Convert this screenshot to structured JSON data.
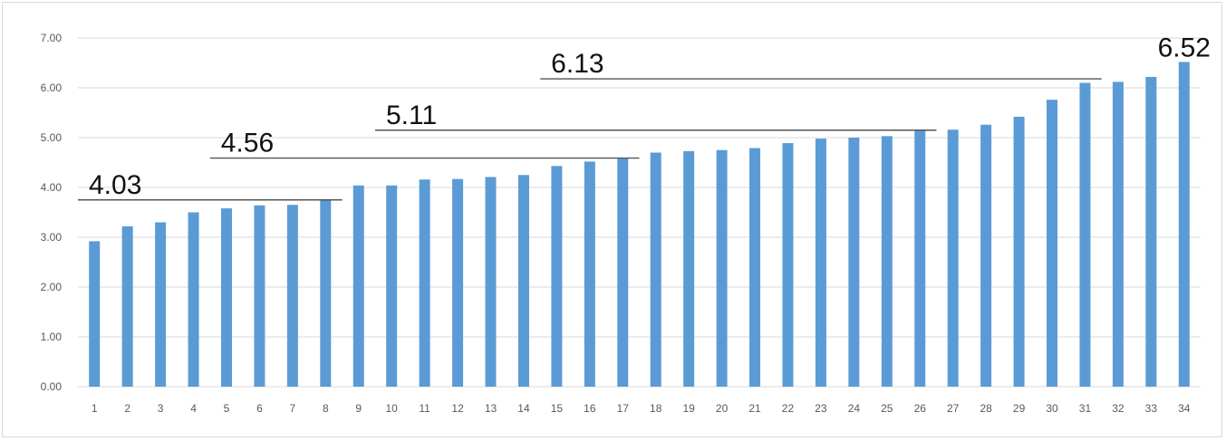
{
  "chart_data": {
    "type": "bar",
    "title": "",
    "xlabel": "",
    "ylabel": "",
    "ylim": [
      0,
      7
    ],
    "yticks": [
      "0.00",
      "1.00",
      "2.00",
      "3.00",
      "4.00",
      "5.00",
      "6.00",
      "7.00"
    ],
    "grid": true,
    "bar_color": "#5B9BD5",
    "categories": [
      "1",
      "2",
      "3",
      "4",
      "5",
      "6",
      "7",
      "8",
      "9",
      "10",
      "11",
      "12",
      "13",
      "14",
      "15",
      "16",
      "17",
      "18",
      "19",
      "20",
      "21",
      "22",
      "23",
      "24",
      "25",
      "26",
      "27",
      "28",
      "29",
      "30",
      "31",
      "32",
      "33",
      "34"
    ],
    "values": [
      2.92,
      3.22,
      3.3,
      3.5,
      3.58,
      3.64,
      3.65,
      3.75,
      4.04,
      4.04,
      4.16,
      4.17,
      4.21,
      4.25,
      4.43,
      4.52,
      4.6,
      4.7,
      4.73,
      4.75,
      4.79,
      4.89,
      4.98,
      5.0,
      5.03,
      5.14,
      5.16,
      5.26,
      5.42,
      5.76,
      6.1,
      6.12,
      6.22,
      6.52
    ],
    "annotations": [
      {
        "label": "4.03",
        "value": 3.75,
        "from": 1,
        "to": 8
      },
      {
        "label": "4.56",
        "value": 4.59,
        "from": 5,
        "to": 17
      },
      {
        "label": "5.11",
        "value": 5.15,
        "from": 10,
        "to": 26
      },
      {
        "label": "6.13",
        "value": 6.18,
        "from": 15,
        "to": 31
      },
      {
        "label": "6.52",
        "value": 6.52,
        "from": 34,
        "to": 34
      }
    ]
  }
}
